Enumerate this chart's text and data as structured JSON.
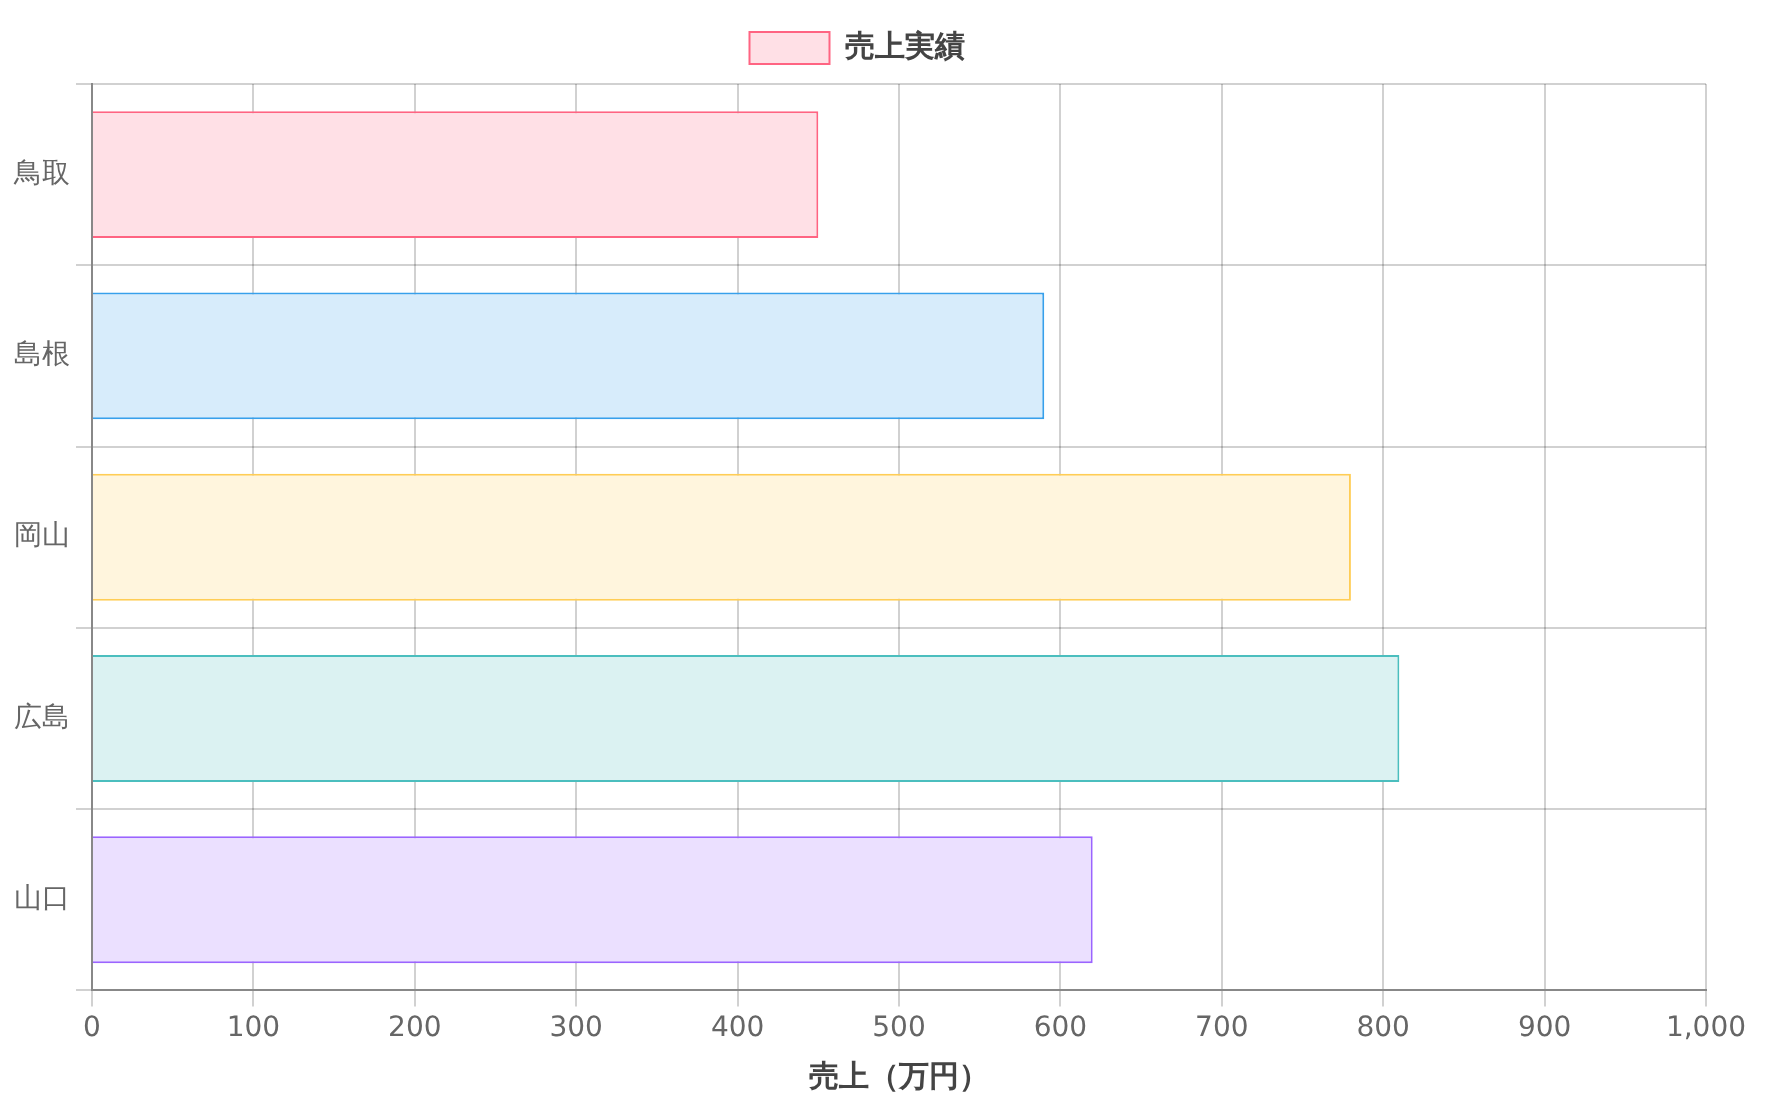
{
  "chart_data": {
    "type": "bar",
    "orientation": "horizontal",
    "xlabel": "売上（万円）",
    "categories": [
      "鳥取",
      "島根",
      "岡山",
      "広島",
      "山口"
    ],
    "series": [
      {
        "name": "売上実績",
        "values": [
          450,
          590,
          780,
          810,
          620
        ],
        "colors": [
          "#ffe0e6",
          "#d7ecfb",
          "#fff5dd",
          "#dbf2f2",
          "#ebe0ff"
        ]
      }
    ],
    "xlim": [
      0,
      1000
    ],
    "xticks": [
      0,
      100,
      200,
      300,
      400,
      500,
      600,
      700,
      800,
      900,
      {
        "value": 1000,
        "label": "1,000"
      }
    ],
    "grid": true,
    "legend": "top"
  }
}
